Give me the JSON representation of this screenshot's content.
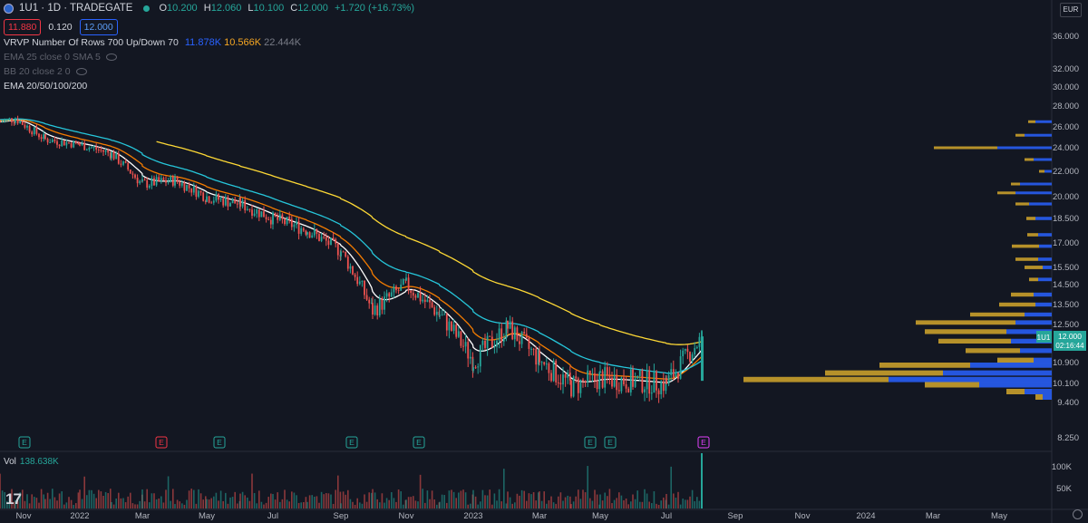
{
  "header": {
    "symbol_line": "1U1 · 1D · TRADEGATE",
    "open_label": "O",
    "open": "10.200",
    "high_label": "H",
    "high": "12.060",
    "low_label": "L",
    "low": "10.100",
    "close_label": "C",
    "close": "12.000",
    "change": "+1.720 (+16.73%)",
    "bid": "11.880",
    "spread": "0.120",
    "ask": "12.000"
  },
  "indicators": [
    {
      "label": "VRVP Number Of Rows 700 Up/Down 70",
      "values": [
        "11.878K",
        "10.566K",
        "22.444K"
      ],
      "hidden": false
    },
    {
      "label": "EMA 25 close 0 SMA 5",
      "hidden": true
    },
    {
      "label": "BB 20 close 2 0",
      "hidden": true
    },
    {
      "label": "EMA 20/50/100/200",
      "hidden": false
    }
  ],
  "currency": "EUR",
  "volume": {
    "label": "Vol",
    "value": "138.638K"
  },
  "price_tag": {
    "symbol": "1U1",
    "price": "12.000",
    "countdown": "02:16:44"
  },
  "colors": {
    "up": "#26a69a",
    "down": "#ef5350",
    "ema20": "#ffffff",
    "ema50": "#f57c00",
    "ema100": "#26c6da",
    "ema200": "#fdd835",
    "vp_up": "#2962ff",
    "vp_down": "#d4a72c"
  },
  "chart_data": {
    "type": "candlestick",
    "y_axis_ticks": [
      "36.000",
      "32.000",
      "30.000",
      "28.000",
      "26.000",
      "24.000",
      "22.000",
      "20.000",
      "18.500",
      "17.000",
      "15.500",
      "14.500",
      "13.500",
      "12.500",
      "10.900",
      "10.100",
      "9.400",
      "8.250"
    ],
    "x_axis_ticks": [
      "Nov",
      "2022",
      "Mar",
      "May",
      "Jul",
      "Sep",
      "Nov",
      "2023",
      "Mar",
      "May",
      "Jul",
      "Sep",
      "Nov",
      "2024",
      "Mar",
      "May"
    ],
    "volume_axis_ticks": [
      "100K",
      "50K"
    ],
    "price_path": [
      {
        "date": "2021-10",
        "close": 26.5
      },
      {
        "date": "2021-11",
        "close": 26.8
      },
      {
        "date": "2021-12",
        "close": 24.8
      },
      {
        "date": "2022-01",
        "close": 24.3
      },
      {
        "date": "2022-02",
        "close": 23.5
      },
      {
        "date": "2022-03",
        "close": 21.0
      },
      {
        "date": "2022-04",
        "close": 21.3
      },
      {
        "date": "2022-05",
        "close": 20.0
      },
      {
        "date": "2022-06",
        "close": 19.5
      },
      {
        "date": "2022-07",
        "close": 18.5
      },
      {
        "date": "2022-08",
        "close": 17.8
      },
      {
        "date": "2022-09",
        "close": 16.5
      },
      {
        "date": "2022-10",
        "close": 13.2
      },
      {
        "date": "2022-11",
        "close": 14.5
      },
      {
        "date": "2022-12",
        "close": 13.0
      },
      {
        "date": "2023-01",
        "close": 11.0
      },
      {
        "date": "2023-02",
        "close": 12.4
      },
      {
        "date": "2023-03",
        "close": 11.0
      },
      {
        "date": "2023-04",
        "close": 10.0
      },
      {
        "date": "2023-05",
        "close": 10.3
      },
      {
        "date": "2023-06",
        "close": 10.2
      },
      {
        "date": "2023-07",
        "close": 10.1
      },
      {
        "date": "2023-08",
        "close": 12.0
      }
    ],
    "earnings_markers": [
      {
        "date": "2021-11",
        "type": "E"
      },
      {
        "date": "2022-03",
        "type": "E"
      },
      {
        "date": "2022-05",
        "type": "E"
      },
      {
        "date": "2022-08",
        "type": "E"
      },
      {
        "date": "2022-11",
        "type": "E"
      },
      {
        "date": "2023-03",
        "type": "E"
      },
      {
        "date": "2023-05",
        "type": "E"
      },
      {
        "date": "2023-08",
        "type": "E"
      }
    ]
  }
}
